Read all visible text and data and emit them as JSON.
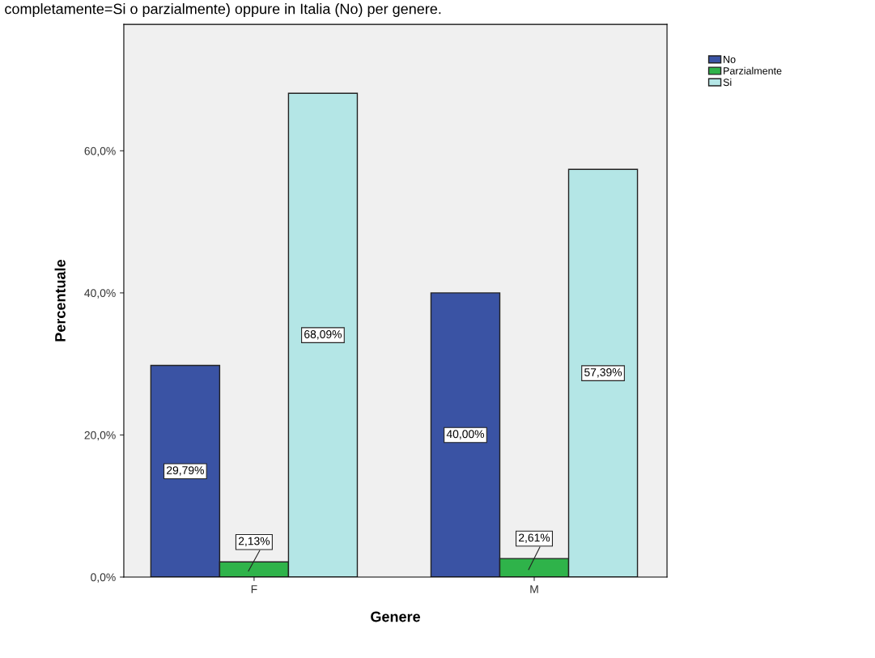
{
  "chart_data": {
    "type": "bar",
    "title": "completamente=Si o parzialmente) oppure in Italia (No) per genere.",
    "xlabel": "Genere",
    "ylabel": "Percentuale",
    "categories": [
      "F",
      "M"
    ],
    "series": [
      {
        "name": "No",
        "color": "#3a53a4",
        "values": [
          29.79,
          40.0
        ],
        "value_labels": [
          "29,79%",
          "40,00%"
        ]
      },
      {
        "name": "Parzialmente",
        "color": "#2fb34a",
        "values": [
          2.13,
          2.61
        ],
        "value_labels": [
          "2,13%",
          "2,61%"
        ]
      },
      {
        "name": "Si",
        "color": "#b4e6e6",
        "values": [
          68.09,
          57.39
        ],
        "value_labels": [
          "68,09%",
          "57,39%"
        ]
      }
    ],
    "ylim": [
      0,
      77.8
    ],
    "yticks": [
      {
        "value": 0,
        "label": "0,0%"
      },
      {
        "value": 20,
        "label": "20,0%"
      },
      {
        "value": 40,
        "label": "40,0%"
      },
      {
        "value": 60,
        "label": "60,0%"
      }
    ],
    "grid": false,
    "legend": "top right"
  }
}
